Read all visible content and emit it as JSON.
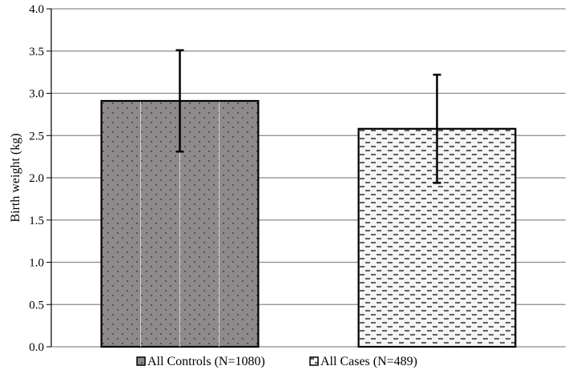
{
  "chart_data": {
    "type": "bar",
    "title": "",
    "xlabel": "",
    "ylabel": "Birth weight  (kg)",
    "ylim": [
      0,
      4.0
    ],
    "yticks": [
      "0.0",
      "0.5",
      "1.0",
      "1.5",
      "2.0",
      "2.5",
      "3.0",
      "3.5",
      "4.0"
    ],
    "grid": true,
    "legend_position": "bottom",
    "series": [
      {
        "name": "All Controls (N=1080)",
        "value": 2.91,
        "error_low": 2.31,
        "error_high": 3.51,
        "fill": "#8e8a8b",
        "pattern": "dots"
      },
      {
        "name": "All Cases (N=489)",
        "value": 2.58,
        "error_low": 1.94,
        "error_high": 3.22,
        "fill": "#f2f2f2",
        "pattern": "dashes"
      }
    ]
  }
}
